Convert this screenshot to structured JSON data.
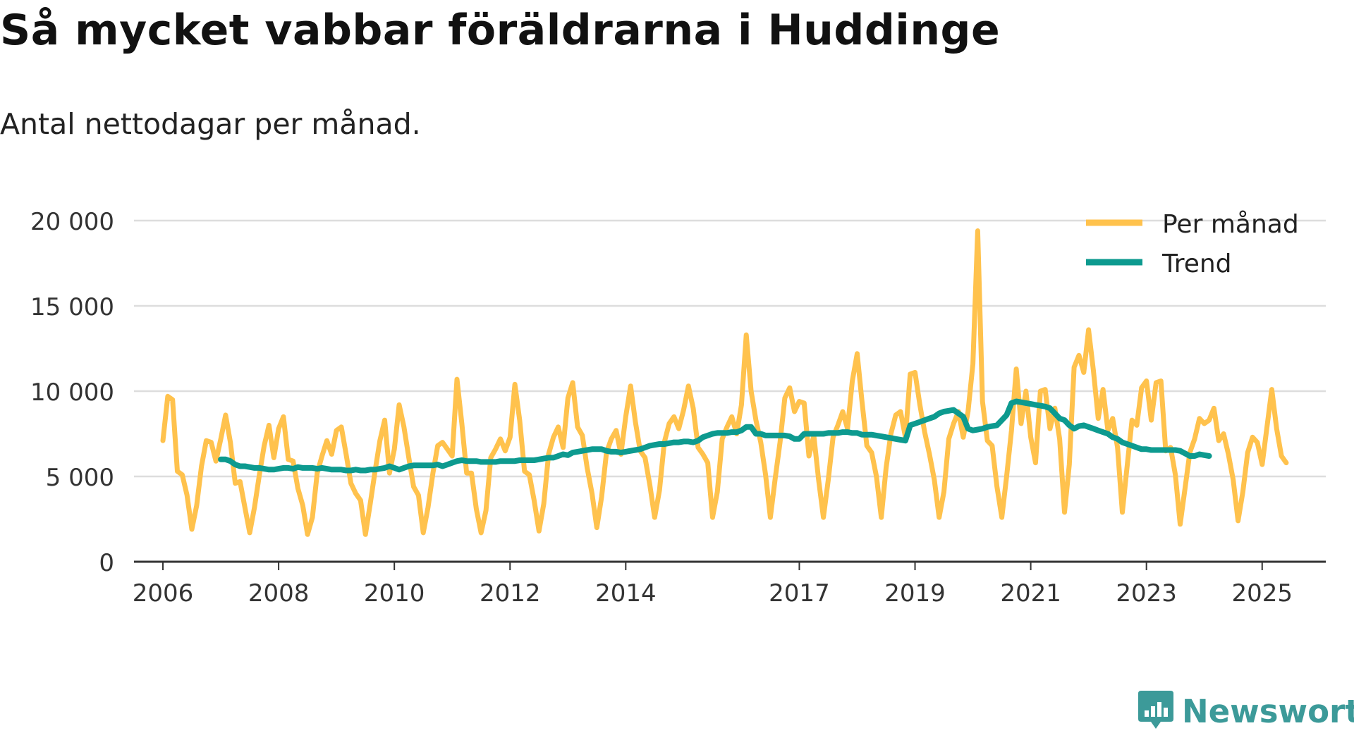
{
  "title": "Så mycket vabbar föräldrarna i Huddinge",
  "subtitle": "Antal nettodagar per månad.",
  "brand": "Newsworthy",
  "colors": {
    "monthly": "#ffc24d",
    "trend": "#0d9a8f",
    "grid": "#dddddd",
    "axis": "#333333",
    "brand": "#3c9a99"
  },
  "chart_data": {
    "type": "line",
    "title": "Så mycket vabbar föräldrarna i Huddinge",
    "subtitle": "Antal nettodagar per månad.",
    "xlabel": "",
    "ylabel": "",
    "ylim": [
      0,
      20000
    ],
    "y_ticks": [
      0,
      5000,
      10000,
      15000,
      20000
    ],
    "y_tick_labels": [
      "0",
      "5 000",
      "10 000",
      "15 000",
      "20 000"
    ],
    "x_ticks": [
      2006,
      2008,
      2010,
      2012,
      2014,
      2017,
      2019,
      2021,
      2023,
      2025
    ],
    "x_tick_labels": [
      "2006",
      "2008",
      "2010",
      "2012",
      "2014",
      "2017",
      "2019",
      "2021",
      "2023",
      "2025"
    ],
    "grid": "horizontal",
    "legend_position": "top-right",
    "legend": [
      "Per månad",
      "Trend"
    ],
    "series": [
      {
        "name": "Per månad",
        "x_start": 2006.0,
        "x_step": 0.0833333,
        "values": [
          7100,
          9700,
          9500,
          5300,
          5100,
          3900,
          1900,
          3300,
          5600,
          7100,
          7000,
          5900,
          7200,
          8600,
          7000,
          4600,
          4700,
          3200,
          1700,
          3200,
          5100,
          6800,
          8000,
          6100,
          7800,
          8500,
          6000,
          5900,
          4300,
          3300,
          1600,
          2600,
          5200,
          6200,
          7100,
          6300,
          7700,
          7900,
          6300,
          4600,
          4000,
          3600,
          1600,
          3400,
          5300,
          7100,
          8300,
          5200,
          6600,
          9200,
          7900,
          6100,
          4400,
          3900,
          1700,
          3200,
          5200,
          6800,
          7000,
          6600,
          6200,
          10700,
          8100,
          5200,
          5200,
          3100,
          1700,
          3000,
          6100,
          6600,
          7200,
          6500,
          7300,
          10400,
          8300,
          5300,
          5100,
          3600,
          1800,
          3400,
          6300,
          7300,
          7900,
          6700,
          9600,
          10500,
          7900,
          7400,
          5500,
          4000,
          2000,
          3800,
          6400,
          7200,
          7700,
          6300,
          8500,
          10300,
          8200,
          6500,
          6100,
          4500,
          2600,
          4200,
          7000,
          8100,
          8500,
          7800,
          8900,
          10300,
          9000,
          6700,
          6300,
          5800,
          2600,
          4100,
          7200,
          7900,
          8500,
          7500,
          9200,
          13300,
          10000,
          8300,
          7000,
          5100,
          2600,
          4900,
          7000,
          9600,
          10200,
          8800,
          9400,
          9300,
          6200,
          7400,
          4800,
          2600,
          4800,
          7300,
          8000,
          8800,
          7800,
          10600,
          12200,
          9400,
          6800,
          6400,
          5000,
          2600,
          5500,
          7500,
          8600,
          8800,
          7300,
          11000,
          11100,
          9200,
          7600,
          6300,
          4800,
          2600,
          4100,
          7200,
          8100,
          8800,
          7300,
          8800,
          11600,
          19400,
          9400,
          7100,
          6800,
          4400,
          2600,
          5000,
          7700,
          11300,
          8100,
          10000,
          7300,
          5800,
          10000,
          10100,
          7800,
          9000,
          7200,
          2900,
          5700,
          11400,
          12100,
          11100,
          13600,
          11200,
          8400,
          10100,
          7700,
          8400,
          6700,
          2900,
          5600,
          8300,
          8000,
          10200,
          10600,
          8300,
          10500,
          10600,
          6500,
          6700,
          5100,
          2200,
          4300,
          6400,
          7200,
          8400,
          8100,
          8300,
          9000,
          7100,
          7500,
          6300,
          4800,
          2400,
          4100,
          6400,
          7300,
          7000,
          5700,
          7900,
          10100,
          7800,
          6200,
          5800
        ]
      },
      {
        "name": "Trend",
        "x_start": 2007.0,
        "x_step": 0.0833333,
        "values": [
          6000,
          6000,
          5900,
          5700,
          5600,
          5600,
          5550,
          5500,
          5500,
          5450,
          5400,
          5400,
          5450,
          5500,
          5500,
          5450,
          5550,
          5500,
          5500,
          5500,
          5450,
          5500,
          5450,
          5400,
          5400,
          5400,
          5350,
          5350,
          5400,
          5350,
          5350,
          5400,
          5400,
          5450,
          5500,
          5600,
          5500,
          5400,
          5500,
          5600,
          5650,
          5650,
          5650,
          5650,
          5650,
          5700,
          5600,
          5700,
          5800,
          5900,
          5950,
          5900,
          5900,
          5900,
          5850,
          5850,
          5850,
          5850,
          5900,
          5900,
          5900,
          5900,
          5950,
          5950,
          5950,
          5950,
          6000,
          6050,
          6100,
          6100,
          6200,
          6300,
          6250,
          6400,
          6450,
          6500,
          6550,
          6600,
          6600,
          6600,
          6500,
          6450,
          6450,
          6400,
          6450,
          6500,
          6550,
          6600,
          6700,
          6800,
          6850,
          6900,
          6900,
          6950,
          7000,
          7000,
          7050,
          7050,
          7000,
          7100,
          7300,
          7400,
          7500,
          7550,
          7550,
          7550,
          7600,
          7600,
          7700,
          7900,
          7900,
          7500,
          7500,
          7400,
          7400,
          7400,
          7400,
          7400,
          7350,
          7200,
          7200,
          7500,
          7500,
          7500,
          7500,
          7500,
          7550,
          7550,
          7550,
          7600,
          7600,
          7550,
          7550,
          7450,
          7450,
          7450,
          7400,
          7350,
          7300,
          7250,
          7200,
          7150,
          7100,
          8000,
          8100,
          8200,
          8300,
          8400,
          8500,
          8700,
          8800,
          8850,
          8900,
          8700,
          8500,
          7800,
          7700,
          7750,
          7800,
          7900,
          7950,
          8000,
          8300,
          8600,
          9300,
          9400,
          9350,
          9300,
          9250,
          9200,
          9150,
          9100,
          9000,
          8700,
          8400,
          8300,
          8000,
          7800,
          7950,
          8000,
          7900,
          7800,
          7700,
          7600,
          7500,
          7300,
          7200,
          7000,
          6900,
          6800,
          6700,
          6600,
          6600,
          6550,
          6550,
          6550,
          6550,
          6550,
          6550,
          6500,
          6350,
          6200,
          6200,
          6300,
          6250,
          6200
        ]
      }
    ]
  }
}
